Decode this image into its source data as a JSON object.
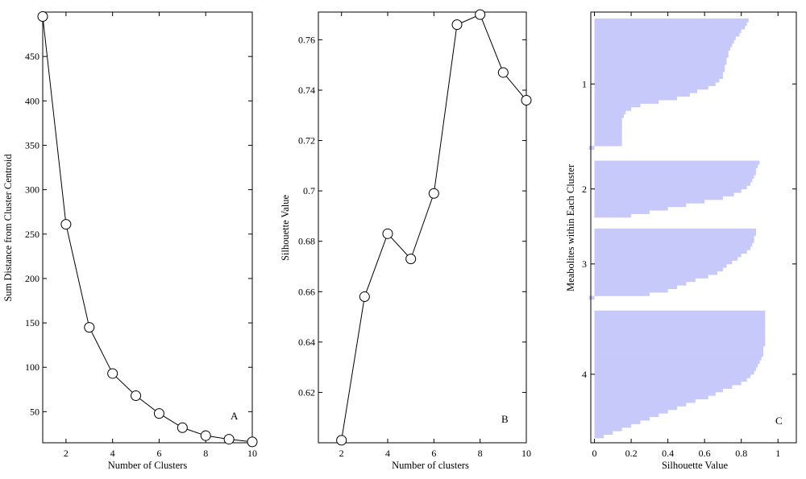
{
  "chart_data": [
    {
      "type": "line",
      "panel_letter": "A",
      "xlabel": "Number of Clusters",
      "ylabel": "Sum Distance from Cluster Centroid",
      "x": [
        1,
        2,
        3,
        4,
        5,
        6,
        7,
        8,
        9,
        10
      ],
      "y": [
        495,
        261,
        145,
        93,
        68,
        48,
        32,
        23,
        19,
        16
      ],
      "xlim": [
        1,
        10
      ],
      "ylim": [
        15,
        500
      ],
      "xticks": [
        2,
        4,
        6,
        8,
        10
      ],
      "yticks": [
        50,
        100,
        150,
        200,
        250,
        300,
        350,
        400,
        450
      ],
      "marker": "circle-open",
      "grid": false
    },
    {
      "type": "line",
      "panel_letter": "B",
      "xlabel": "Number of clusters",
      "ylabel": "Silhouette Value",
      "x": [
        2,
        3,
        4,
        5,
        6,
        7,
        8,
        9,
        10
      ],
      "y": [
        0.601,
        0.658,
        0.683,
        0.673,
        0.699,
        0.766,
        0.77,
        0.747,
        0.736
      ],
      "xlim": [
        1,
        10
      ],
      "ylim": [
        0.6,
        0.771
      ],
      "xticks": [
        2,
        4,
        6,
        8,
        10
      ],
      "yticks": [
        0.62,
        0.64,
        0.66,
        0.68,
        0.7,
        0.72,
        0.74,
        0.76
      ],
      "marker": "circle-open",
      "grid": false
    },
    {
      "type": "bar",
      "orientation": "horizontal",
      "panel_letter": "C",
      "xlabel": "Silhouette Value",
      "ylabel": "Meabolites within Each Cluster",
      "xlim": [
        -0.02,
        1.1
      ],
      "xticks": [
        0,
        0.2,
        0.4,
        0.6,
        0.8,
        1
      ],
      "clusters": [
        {
          "label": "1",
          "silhouette": [
            0.84,
            0.83,
            0.82,
            0.8,
            0.79,
            0.77,
            0.76,
            0.75,
            0.74,
            0.73,
            0.73,
            0.72,
            0.72,
            0.71,
            0.71,
            0.7,
            0.7,
            0.68,
            0.66,
            0.62,
            0.56,
            0.52,
            0.45,
            0.35,
            0.25,
            0.2,
            0.17,
            0.16,
            0.15,
            0.15,
            0.15,
            0.15,
            0.15,
            0.15,
            0.15,
            0.15,
            -0.03
          ]
        },
        {
          "label": "2",
          "silhouette": [
            0.9,
            0.89,
            0.88,
            0.88,
            0.87,
            0.86,
            0.85,
            0.83,
            0.8,
            0.76,
            0.7,
            0.6,
            0.5,
            0.4,
            0.3,
            0.2
          ]
        },
        {
          "label": "3",
          "silhouette": [
            0.88,
            0.88,
            0.87,
            0.87,
            0.86,
            0.85,
            0.83,
            0.8,
            0.78,
            0.75,
            0.72,
            0.7,
            0.67,
            0.62,
            0.55,
            0.5,
            0.45,
            0.4,
            0.3,
            -0.03
          ]
        },
        {
          "label": "4",
          "silhouette": [
            0.93,
            0.93,
            0.93,
            0.93,
            0.93,
            0.93,
            0.93,
            0.93,
            0.93,
            0.93,
            0.92,
            0.92,
            0.92,
            0.91,
            0.9,
            0.89,
            0.88,
            0.87,
            0.85,
            0.83,
            0.8,
            0.75,
            0.7,
            0.66,
            0.62,
            0.55,
            0.5,
            0.45,
            0.4,
            0.35,
            0.3,
            0.25,
            0.2,
            0.15,
            0.1,
            0.05
          ]
        }
      ],
      "grid": false
    }
  ]
}
